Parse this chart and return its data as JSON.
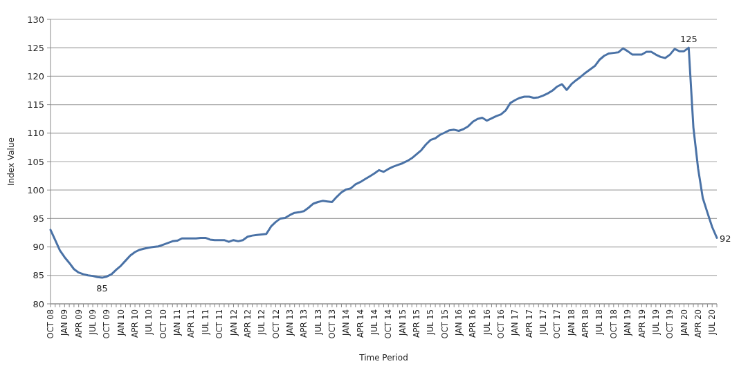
{
  "chart_data": {
    "type": "line",
    "xlabel": "Time Period",
    "ylabel": "Index Value",
    "categories": [
      "OCT 08",
      null,
      null,
      "JAN 09",
      null,
      null,
      "APR 09",
      null,
      null,
      "JUL 09",
      null,
      null,
      "OCT 09",
      null,
      null,
      "JAN 10",
      null,
      null,
      "APR 10",
      null,
      null,
      "JUL 10",
      null,
      null,
      "OCT 10",
      null,
      null,
      "JAN 11",
      null,
      null,
      "APR 11",
      null,
      null,
      "JUL 11",
      null,
      null,
      "OCT 11",
      null,
      null,
      "JAN 12",
      null,
      null,
      "APR 12",
      null,
      null,
      "JUL 12",
      null,
      null,
      "OCT 12",
      null,
      null,
      "JAN 13",
      null,
      null,
      "APR 13",
      null,
      null,
      "JUL 13",
      null,
      null,
      "OCT 13",
      null,
      null,
      "JAN 14",
      null,
      null,
      "APR 14",
      null,
      null,
      "JUL 14",
      null,
      null,
      "OCT 14",
      null,
      null,
      "JAN 15",
      null,
      null,
      "APR 15",
      null,
      null,
      "JUL 15",
      null,
      null,
      "OCT 15",
      null,
      null,
      "JAN 16",
      null,
      null,
      "APR 16",
      null,
      null,
      "JUL 16",
      null,
      null,
      "OCT 16",
      null,
      null,
      "JAN 17",
      null,
      null,
      "APR 17",
      null,
      null,
      "JUL 17",
      null,
      null,
      "OCT 17",
      null,
      null,
      "JAN 18",
      null,
      null,
      "APR 18",
      null,
      null,
      "JUL 18",
      null,
      null,
      "OCT 18",
      null,
      null,
      "JAN 19",
      null,
      null,
      "APR 19",
      null,
      null,
      "JUL 19",
      null,
      null,
      "OCT 19",
      null,
      null,
      "JAN 20",
      null,
      null,
      "APR 20",
      null,
      null,
      "JUL 20",
      null
    ],
    "series": [
      {
        "color": "#4a72a6",
        "values": [
          93,
          91.2,
          89.4,
          88.2,
          87.2,
          86.1,
          85.5,
          85.2,
          85.0,
          84.9,
          84.7,
          84.6,
          84.8,
          85.2,
          86.0,
          86.7,
          87.6,
          88.5,
          89.1,
          89.5,
          89.7,
          89.9,
          90,
          90.1,
          90.4,
          90.7,
          91,
          91.1,
          91.5,
          91.5,
          91.5,
          91.5,
          91.6,
          91.6,
          91.3,
          91.2,
          91.2,
          91.2,
          90.9,
          91.2,
          91.0,
          91.2,
          91.8,
          92.0,
          92.1,
          92.2,
          92.3,
          93.6,
          94.4,
          95,
          95.1,
          95.6,
          96,
          96.1,
          96.3,
          96.9,
          97.6,
          97.9,
          98.1,
          98.0,
          97.9,
          98.8,
          99.6,
          100.1,
          100.3,
          101,
          101.4,
          101.9,
          102.4,
          102.9,
          103.5,
          103.2,
          103.7,
          104.1,
          104.4,
          104.7,
          105.1,
          105.6,
          106.3,
          107.0,
          108,
          108.8,
          109.1,
          109.7,
          110.1,
          110.5,
          110.6,
          110.4,
          110.7,
          111.2,
          112,
          112.5,
          112.7,
          112.2,
          112.6,
          113,
          113.3,
          114,
          115.3,
          115.8,
          116.2,
          116.4,
          116.4,
          116.2,
          116.3,
          116.6,
          117,
          117.5,
          118.2,
          118.6,
          117.6,
          118.6,
          119.3,
          119.9,
          120.6,
          121.2,
          121.8,
          122.9,
          123.6,
          124,
          124.1,
          124.2,
          124.9,
          124.4,
          123.8,
          123.8,
          123.8,
          124.3,
          124.3,
          123.8,
          123.4,
          123.2,
          123.8,
          124.8,
          124.4,
          124.4,
          125,
          111,
          103.8,
          98.6,
          96,
          93.5,
          91.6
        ],
        "value_labels": [
          null,
          null,
          null,
          null,
          null,
          null,
          null,
          null,
          null,
          null,
          null,
          "85",
          null,
          null,
          null,
          null,
          null,
          null,
          null,
          null,
          null,
          null,
          null,
          null,
          null,
          null,
          null,
          null,
          null,
          null,
          null,
          null,
          null,
          null,
          null,
          null,
          null,
          null,
          null,
          null,
          null,
          null,
          null,
          null,
          null,
          null,
          null,
          null,
          null,
          null,
          null,
          null,
          null,
          null,
          null,
          null,
          null,
          null,
          null,
          null,
          null,
          null,
          null,
          null,
          null,
          null,
          null,
          null,
          null,
          null,
          null,
          null,
          null,
          null,
          null,
          null,
          null,
          null,
          null,
          null,
          null,
          null,
          null,
          null,
          null,
          null,
          null,
          null,
          null,
          null,
          null,
          null,
          null,
          null,
          null,
          null,
          null,
          null,
          null,
          null,
          null,
          null,
          null,
          null,
          null,
          null,
          null,
          null,
          null,
          null,
          null,
          null,
          null,
          null,
          null,
          null,
          null,
          null,
          null,
          null,
          null,
          null,
          null,
          null,
          null,
          null,
          null,
          null,
          null,
          null,
          null,
          null,
          null,
          null,
          null,
          null,
          "125",
          null,
          null,
          null,
          null,
          null,
          "92"
        ]
      }
    ],
    "ylim": [
      80,
      130
    ],
    "yticks": [
      80,
      85,
      90,
      95,
      100,
      105,
      110,
      115,
      120,
      125,
      130
    ],
    "grid": "y",
    "marker": "none",
    "line_style": "solid"
  }
}
